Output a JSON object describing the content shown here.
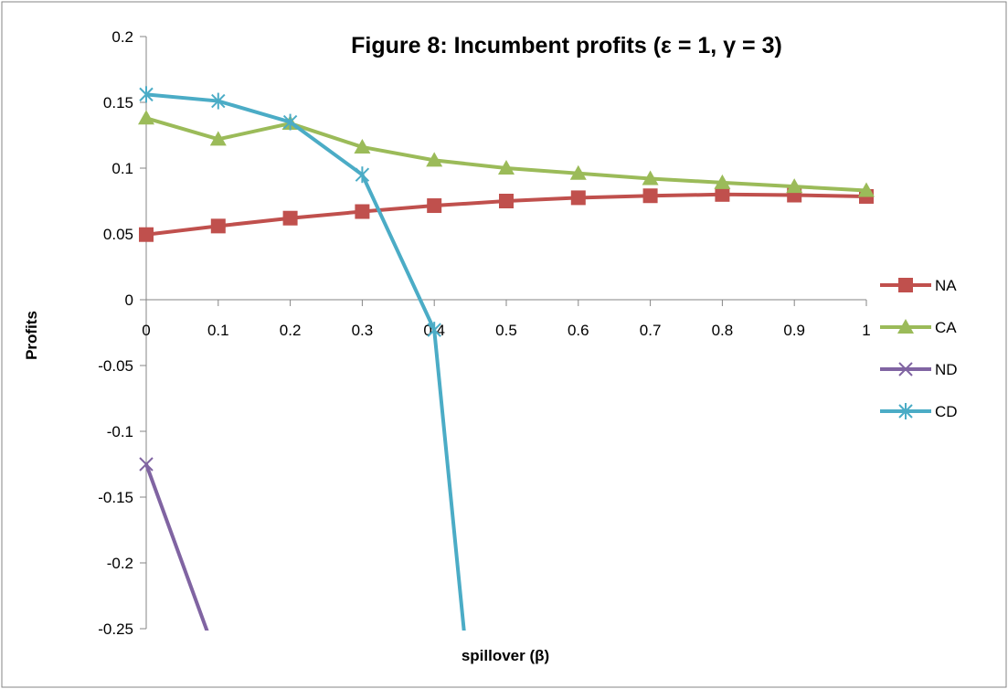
{
  "chart_data": {
    "type": "line",
    "title": "Figure 8: Incumbent profits (ε = 1, γ = 3)",
    "xlabel": "spillover (β)",
    "ylabel": "Profits",
    "x": [
      0,
      0.1,
      0.2,
      0.3,
      0.4,
      0.5,
      0.6,
      0.7,
      0.8,
      0.9,
      1
    ],
    "x_tick_labels": [
      "0",
      "0.1",
      "0.2",
      "0.3",
      "0.4",
      "0.5",
      "0.6",
      "0.7",
      "0.8",
      "0.9",
      "1"
    ],
    "y_ticks": [
      0.2,
      0.15,
      0.1,
      0.05,
      0,
      -0.05,
      -0.1,
      -0.15,
      -0.2,
      -0.25
    ],
    "y_tick_labels": [
      "0.2",
      "0.15",
      "0.1",
      "0.05",
      "0",
      "-0.05",
      "-0.1",
      "-0.15",
      "-0.2",
      "-0.25"
    ],
    "xlim": [
      0,
      1
    ],
    "ylim": [
      -0.25,
      0.2
    ],
    "grid": false,
    "legend_position": "right",
    "series": [
      {
        "name": "NA",
        "color": "#C0504D",
        "marker": "square",
        "x": [
          0,
          0.1,
          0.2,
          0.3,
          0.4,
          0.5,
          0.6,
          0.7,
          0.8,
          0.9,
          1
        ],
        "values": [
          0.0495,
          0.056,
          0.062,
          0.067,
          0.0715,
          0.075,
          0.0775,
          0.079,
          0.08,
          0.0795,
          0.0785
        ]
      },
      {
        "name": "CA",
        "color": "#9BBB59",
        "marker": "triangle",
        "x": [
          0,
          0.1,
          0.2,
          0.3,
          0.4,
          0.5,
          0.6,
          0.7,
          0.8,
          0.9,
          1
        ],
        "values": [
          0.138,
          0.122,
          0.134,
          0.116,
          0.106,
          0.1,
          0.096,
          0.092,
          0.089,
          0.086,
          0.083
        ]
      },
      {
        "name": "ND",
        "color": "#8064A2",
        "marker": "x",
        "x": [
          0,
          0.1
        ],
        "values": [
          -0.125,
          -0.275
        ]
      },
      {
        "name": "CD",
        "color": "#4BACC6",
        "marker": "asterisk",
        "x": [
          0,
          0.1,
          0.2,
          0.3,
          0.4,
          0.45
        ],
        "values": [
          0.156,
          0.151,
          0.135,
          0.095,
          -0.023,
          -0.3
        ]
      }
    ]
  }
}
